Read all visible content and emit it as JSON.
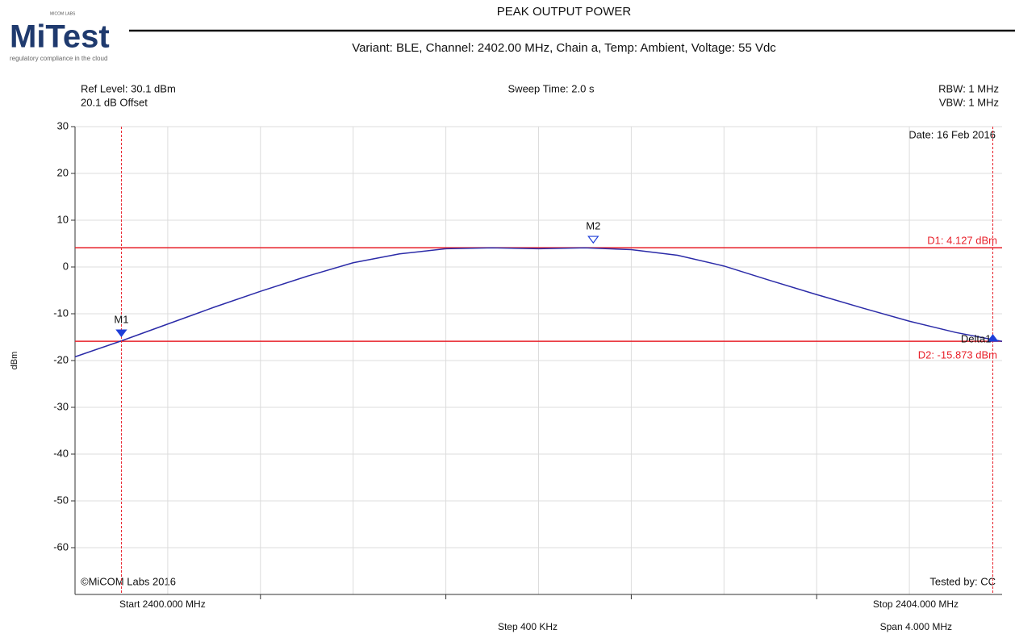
{
  "header": {
    "logo": "MiTest",
    "logo_small": "MICOM LABS",
    "tagline": "regulatory compliance in the cloud",
    "title": "PEAK OUTPUT POWER",
    "subtitle": "Variant: BLE, Channel: 2402.00 MHz, Chain a, Temp: Ambient, Voltage: 55 Vdc"
  },
  "chart_data": {
    "type": "line",
    "annotations": {
      "ref_level": "Ref Level: 30.1 dBm",
      "offset": "20.1 dB Offset",
      "sweep": "Sweep Time: 2.0 s",
      "rbw": "RBW: 1 MHz",
      "vbw": "VBW: 1 MHz",
      "date": "Date: 16 Feb 2016",
      "copyright": "©MiCOM Labs 2016",
      "tested": "Tested by: CC",
      "start": "Start 2400.000 MHz",
      "stop": "Stop 2404.000 MHz",
      "step": "Step 400 KHz",
      "span": "Span 4.000 MHz"
    },
    "ylabel": "dBm",
    "x": [
      2400.0,
      2400.2,
      2400.4,
      2400.6,
      2400.8,
      2401.0,
      2401.2,
      2401.4,
      2401.6,
      2401.8,
      2402.0,
      2402.2,
      2402.4,
      2402.6,
      2402.8,
      2403.0,
      2403.2,
      2403.4,
      2403.6,
      2403.8,
      2404.0
    ],
    "series": [
      {
        "color": "#2b2ba8",
        "values": [
          -19.2,
          -15.8,
          -12.2,
          -8.6,
          -5.2,
          -2.0,
          0.9,
          2.8,
          3.9,
          4.1,
          3.9,
          4.1,
          3.7,
          2.5,
          0.2,
          -2.9,
          -5.9,
          -8.8,
          -11.6,
          -14.0,
          -15.9
        ]
      }
    ],
    "xlim": [
      2400,
      2404
    ],
    "xticks": [
      2400.4,
      2400.8,
      2401.2,
      2401.6,
      2402.0,
      2402.4,
      2402.8,
      2403.2,
      2403.6
    ],
    "ylim": [
      -70,
      30
    ],
    "yticks": [
      -60,
      -50,
      -40,
      -30,
      -20,
      -10,
      0,
      10,
      20,
      30
    ],
    "grid": true,
    "reference_lines": [
      {
        "label": "D1: 4.127 dBm",
        "value": 4.127,
        "color": "#e8202a"
      },
      {
        "label": "D2: -15.873 dBm",
        "value": -15.873,
        "color": "#e8202a"
      }
    ],
    "markers": [
      {
        "name": "M1",
        "x": 2400.2,
        "y": -15.873,
        "vline": true,
        "filled": true
      },
      {
        "name": "M2",
        "x": 2402.236,
        "y": 4.127,
        "vline": false,
        "filled": false
      },
      {
        "name": "Delta1",
        "x": 2403.96,
        "y": -15.873,
        "vline": true,
        "filled": true
      }
    ]
  }
}
